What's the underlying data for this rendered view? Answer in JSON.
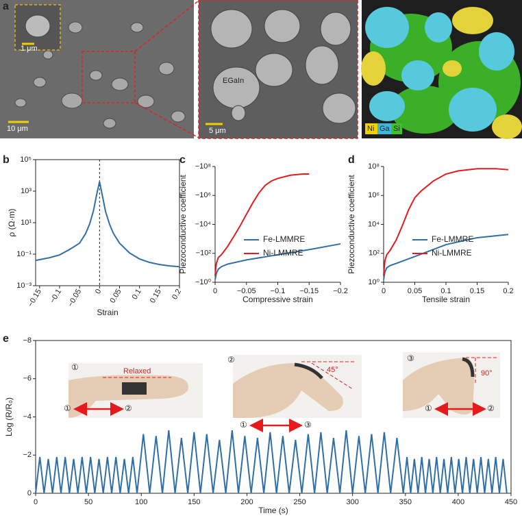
{
  "panel_labels": [
    "a",
    "b",
    "c",
    "d",
    "e"
  ],
  "images": {
    "inset_scale": "1 μm",
    "left_scale": "10 μm",
    "middle_label": "EGaIn",
    "middle_scale": "5 μm",
    "elements": [
      "Ni",
      "Ga",
      "Si"
    ]
  },
  "chart_data": [
    {
      "type": "line",
      "x_label": "Strain",
      "y_label": "ρ (Ω·m)",
      "ylog": true,
      "frame": true,
      "reference_line": 0,
      "color": "#2f6fa7",
      "xlim": [
        -0.16,
        0.2
      ],
      "ylim": [
        0.001,
        100000
      ],
      "xticks": [
        {
          "value": -0.15,
          "label": "−0.15"
        },
        {
          "value": -0.1,
          "label": "−0.1"
        },
        {
          "value": -0.05,
          "label": "−0.05"
        },
        0,
        0.05,
        0.1,
        0.15,
        0.2
      ],
      "yticks": [
        {
          "value": 0.001,
          "label": "10⁻³"
        },
        {
          "value": 0.1,
          "label": "10⁻¹"
        },
        {
          "value": 10,
          "label": "10¹"
        },
        {
          "value": 1000,
          "label": "10³"
        },
        {
          "value": 100000,
          "label": "10⁵"
        }
      ],
      "x": [
        -0.16,
        -0.15,
        -0.125,
        -0.1,
        -0.075,
        -0.05,
        -0.035,
        -0.025,
        -0.015,
        -0.008,
        0,
        0.008,
        0.015,
        0.025,
        0.035,
        0.05,
        0.075,
        0.1,
        0.125,
        0.15,
        0.175,
        0.2
      ],
      "values": [
        0.04,
        0.045,
        0.06,
        0.09,
        0.2,
        0.5,
        2,
        8,
        60,
        500,
        4000,
        400,
        50,
        8,
        2,
        0.5,
        0.12,
        0.05,
        0.03,
        0.022,
        0.018,
        0.016
      ]
    },
    {
      "type": "line",
      "x_label": "Compressive strain",
      "y_label": "Piezoconductive coefficient",
      "ylog": true,
      "frame": false,
      "legend": "lower right",
      "xlim": [
        0,
        -0.2
      ],
      "ylim": [
        -1,
        -100000000
      ],
      "xticks": [
        0,
        {
          "value": -0.05,
          "label": "−0.05"
        },
        {
          "value": -0.1,
          "label": "−0.1"
        },
        {
          "value": -0.15,
          "label": "−0.15"
        },
        {
          "value": -0.2,
          "label": "−0.2"
        }
      ],
      "yticks": [
        {
          "value": -1,
          "label": "−10⁰"
        },
        {
          "value": -100,
          "label": "−10²"
        },
        {
          "value": -10000,
          "label": "−10⁴"
        },
        {
          "value": -1000000,
          "label": "−10⁶"
        },
        {
          "value": -100000000,
          "label": "−10⁸"
        }
      ],
      "series": [
        {
          "name": "Fe-LMMRE",
          "color": "#2f6fa7",
          "x": [
            0,
            -0.002,
            -0.005,
            -0.01,
            -0.02,
            -0.05,
            -0.1,
            -0.15,
            -0.2
          ],
          "values": [
            -1.5,
            -4,
            -8,
            -12,
            -18,
            -35,
            -80,
            -180,
            -450
          ]
        },
        {
          "name": "Ni-LMMRE",
          "color": "#e41a1c",
          "x": [
            0,
            -0.002,
            -0.005,
            -0.01,
            -0.02,
            -0.03,
            -0.04,
            -0.05,
            -0.06,
            -0.07,
            -0.08,
            -0.09,
            -0.1,
            -0.12,
            -0.14,
            -0.15
          ],
          "values": [
            -3,
            -20,
            -50,
            -80,
            -300,
            -1500,
            -8000,
            -50000,
            -300000,
            -1500000,
            -5000000,
            -10000000,
            -15000000,
            -25000000,
            -30000000,
            -30000000
          ]
        }
      ]
    },
    {
      "type": "line",
      "x_label": "Tensile strain",
      "y_label": "Piezoconductive coefficient",
      "ylog": true,
      "frame": false,
      "legend": "lower right",
      "xlim": [
        0,
        0.2
      ],
      "ylim": [
        1,
        100000000
      ],
      "xticks": [
        0,
        0.05,
        0.1,
        0.15,
        0.2
      ],
      "yticks": [
        {
          "value": 1,
          "label": "10⁰"
        },
        {
          "value": 100,
          "label": "10²"
        },
        {
          "value": 10000,
          "label": "10⁴"
        },
        {
          "value": 1000000,
          "label": "10⁶"
        },
        {
          "value": 100000000,
          "label": "10⁸"
        }
      ],
      "series": [
        {
          "name": "Fe-LMMRE",
          "color": "#2f6fa7",
          "x": [
            0,
            0.002,
            0.005,
            0.01,
            0.02,
            0.05,
            0.1,
            0.15,
            0.2
          ],
          "values": [
            1.5,
            5,
            10,
            14,
            20,
            60,
            400,
            1200,
            2000
          ]
        },
        {
          "name": "Ni-LMMRE",
          "color": "#e41a1c",
          "x": [
            0,
            0.002,
            0.005,
            0.01,
            0.02,
            0.03,
            0.04,
            0.05,
            0.06,
            0.08,
            0.1,
            0.12,
            0.15,
            0.18,
            0.2
          ],
          "values": [
            3,
            30,
            80,
            150,
            800,
            8000,
            100000,
            700000,
            2000000,
            10000000,
            30000000,
            50000000,
            70000000,
            70000000,
            60000000
          ]
        }
      ]
    },
    {
      "type": "line",
      "x_label": "Time (s)",
      "y_label": "Log (R/R₀)",
      "ylog": false,
      "frame": true,
      "color": "#2f6fa7",
      "xlim": [
        0,
        450
      ],
      "ylim": [
        0,
        -8
      ],
      "xticks": [
        0,
        50,
        100,
        150,
        200,
        250,
        300,
        350,
        400,
        450
      ],
      "yticks": [
        0,
        {
          "value": -2,
          "label": "−2"
        },
        {
          "value": -4,
          "label": "−4"
        },
        {
          "value": -6,
          "label": "−6"
        },
        {
          "value": -8,
          "label": "−8"
        }
      ],
      "annotations": {
        "steps": [
          "①",
          "②",
          "③"
        ],
        "relaxed": "Relaxed",
        "bend45": "45°",
        "bend90": "90°"
      },
      "x": [
        0,
        4,
        8,
        12,
        16,
        20,
        24,
        28,
        32,
        36,
        40,
        44,
        48,
        52,
        56,
        60,
        64,
        68,
        72,
        76,
        80,
        84,
        88,
        92,
        96,
        102,
        108,
        114,
        120,
        126,
        132,
        138,
        144,
        150,
        156,
        162,
        168,
        174,
        180,
        186,
        192,
        198,
        204,
        210,
        216,
        222,
        228,
        234,
        240,
        246,
        252,
        258,
        264,
        270,
        276,
        282,
        288,
        294,
        300,
        306,
        312,
        318,
        324,
        330,
        336,
        342,
        348,
        351.5,
        355,
        358.5,
        362,
        365.5,
        369,
        372.5,
        376,
        379.5,
        383,
        386.5,
        390,
        393.5,
        397,
        400.5,
        404,
        407.5,
        411,
        414.5,
        418,
        421.5,
        425,
        428.5,
        432,
        435.5,
        439,
        442.5,
        446
      ],
      "values": [
        0,
        -1.9,
        0,
        -1.8,
        0,
        -1.9,
        0,
        -1.9,
        0,
        -1.8,
        0,
        -1.9,
        0,
        -1.9,
        0,
        -1.8,
        0,
        -1.9,
        0,
        -1.9,
        0,
        -1.8,
        0,
        -1.9,
        0,
        -3.1,
        0,
        -3.0,
        0,
        -3.3,
        0,
        -2.9,
        0,
        -3.2,
        0,
        -3.1,
        0,
        -2.8,
        0,
        -3.3,
        0,
        -3.0,
        0,
        -2.9,
        0,
        -3.2,
        0,
        -3.0,
        0,
        -2.8,
        0,
        -3.1,
        0,
        -3.2,
        0,
        -2.9,
        0,
        -3.3,
        0,
        -3.0,
        0,
        -3.1,
        0,
        -3.2,
        0,
        -2.9,
        0,
        -1.9,
        0,
        -1.8,
        0,
        -1.9,
        0,
        -1.8,
        0,
        -1.9,
        0,
        -1.8,
        0,
        -1.9,
        0,
        -1.8,
        0,
        -1.9,
        0,
        -1.8,
        0,
        -1.9,
        0,
        -1.8,
        0,
        -1.9,
        0,
        -1.8,
        0
      ]
    }
  ]
}
